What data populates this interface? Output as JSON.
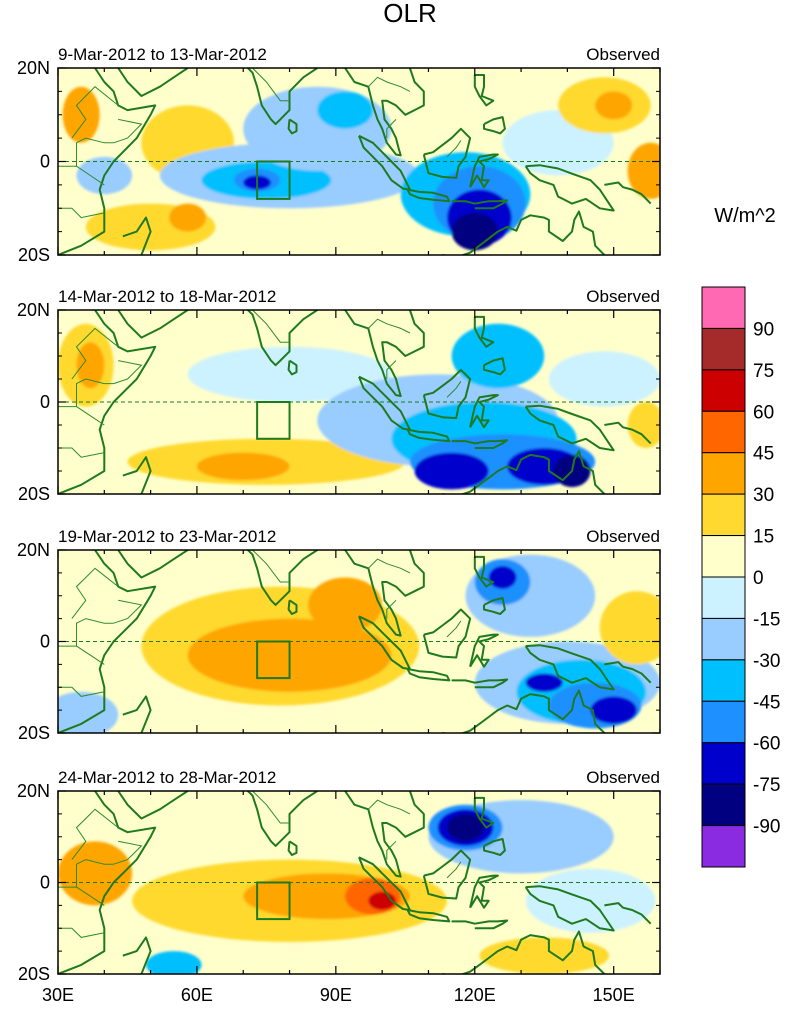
{
  "chart_data": {
    "type": "heatmap",
    "title": "OLR",
    "units": "W/m^2",
    "x_axis": {
      "range": [
        30,
        160
      ],
      "ticks": [
        30,
        60,
        90,
        120,
        150
      ],
      "tick_labels": [
        "30E",
        "60E",
        "90E",
        "120E",
        "150E"
      ]
    },
    "y_axis": {
      "range": [
        -20,
        20
      ],
      "ticks": [
        20,
        0,
        -20
      ],
      "tick_labels": [
        "20N",
        "0",
        "20S"
      ]
    },
    "equator_line": "dashed at 0",
    "box_region": {
      "lon": [
        73,
        80
      ],
      "lat": [
        -8,
        0
      ]
    },
    "colorbar": {
      "levels": [
        "90",
        "75",
        "60",
        "45",
        "30",
        "15",
        "0",
        "-15",
        "-30",
        "-45",
        "-60",
        "-75",
        "-90"
      ],
      "colors": [
        "#ff69b4",
        "#a52a2a",
        "#cc0000",
        "#ff6600",
        "#ffa500",
        "#ffd92f",
        "#ffffcc",
        "#ccf2ff",
        "#99ccff",
        "#00bfff",
        "#1e90ff",
        "#0000cd",
        "#000080",
        "#8a2be2"
      ]
    },
    "panels": [
      {
        "period": "9-Mar-2012 to 13-Mar-2012",
        "label": "Observed",
        "anomalies": [
          {
            "lon": 35,
            "lat": 10,
            "rx": 4,
            "ry": 6,
            "value": 30
          },
          {
            "lon": 40,
            "lat": -3,
            "rx": 6,
            "ry": 4,
            "value": -30
          },
          {
            "lon": 50,
            "lat": -14,
            "rx": 14,
            "ry": 5,
            "value": 15
          },
          {
            "lon": 58,
            "lat": -12,
            "rx": 4,
            "ry": 3,
            "value": 30
          },
          {
            "lon": 58,
            "lat": 4,
            "rx": 10,
            "ry": 8,
            "value": 15
          },
          {
            "lon": 80,
            "lat": -3,
            "rx": 28,
            "ry": 7,
            "value": -30
          },
          {
            "lon": 75,
            "lat": -4,
            "rx": 14,
            "ry": 4,
            "value": -45
          },
          {
            "lon": 73,
            "lat": -4,
            "rx": 5,
            "ry": 2.5,
            "value": -60
          },
          {
            "lon": 73,
            "lat": -4.5,
            "rx": 3,
            "ry": 1.5,
            "value": -75
          },
          {
            "lon": 86,
            "lat": 7,
            "rx": 16,
            "ry": 9,
            "value": -30
          },
          {
            "lon": 92,
            "lat": 11,
            "rx": 6,
            "ry": 4,
            "value": -45
          },
          {
            "lon": 118,
            "lat": -7,
            "rx": 14,
            "ry": 9,
            "value": -45
          },
          {
            "lon": 121,
            "lat": -9,
            "rx": 10,
            "ry": 8,
            "value": -60
          },
          {
            "lon": 121,
            "lat": -12,
            "rx": 7,
            "ry": 6,
            "value": -75
          },
          {
            "lon": 120,
            "lat": -15,
            "rx": 5,
            "ry": 4,
            "value": -90
          },
          {
            "lon": 138,
            "lat": 4,
            "rx": 12,
            "ry": 7,
            "value": -15
          },
          {
            "lon": 148,
            "lat": 12,
            "rx": 10,
            "ry": 6,
            "value": 15
          },
          {
            "lon": 150,
            "lat": 12,
            "rx": 4,
            "ry": 3,
            "value": 30
          },
          {
            "lon": 158,
            "lat": -2,
            "rx": 5,
            "ry": 6,
            "value": 30
          }
        ]
      },
      {
        "period": "14-Mar-2012 to 18-Mar-2012",
        "label": "Observed",
        "anomalies": [
          {
            "lon": 36,
            "lat": 8,
            "rx": 6,
            "ry": 9,
            "value": 15
          },
          {
            "lon": 37,
            "lat": 8,
            "rx": 3,
            "ry": 5,
            "value": 30
          },
          {
            "lon": 75,
            "lat": -13,
            "rx": 30,
            "ry": 5,
            "value": 15
          },
          {
            "lon": 70,
            "lat": -14,
            "rx": 10,
            "ry": 3,
            "value": 30
          },
          {
            "lon": 80,
            "lat": 6,
            "rx": 22,
            "ry": 6,
            "value": -15
          },
          {
            "lon": 112,
            "lat": -4,
            "rx": 26,
            "ry": 10,
            "value": -30
          },
          {
            "lon": 122,
            "lat": -8,
            "rx": 20,
            "ry": 8,
            "value": -45
          },
          {
            "lon": 125,
            "lat": 10,
            "rx": 10,
            "ry": 7,
            "value": -45
          },
          {
            "lon": 126,
            "lat": -13,
            "rx": 20,
            "ry": 6,
            "value": -60
          },
          {
            "lon": 115,
            "lat": -15,
            "rx": 8,
            "ry": 4,
            "value": -75
          },
          {
            "lon": 135,
            "lat": -14,
            "rx": 8,
            "ry": 4,
            "value": -75
          },
          {
            "lon": 141,
            "lat": -15,
            "rx": 4,
            "ry": 3.5,
            "value": -90
          },
          {
            "lon": 148,
            "lat": 5,
            "rx": 12,
            "ry": 6,
            "value": -15
          },
          {
            "lon": 157,
            "lat": -5,
            "rx": 4,
            "ry": 5,
            "value": 15
          }
        ]
      },
      {
        "period": "19-Mar-2012 to 23-Mar-2012",
        "label": "Observed",
        "anomalies": [
          {
            "lon": 78,
            "lat": -1,
            "rx": 30,
            "ry": 13,
            "value": 15
          },
          {
            "lon": 80,
            "lat": -3,
            "rx": 22,
            "ry": 8,
            "value": 30
          },
          {
            "lon": 92,
            "lat": 8,
            "rx": 8,
            "ry": 6,
            "value": 30
          },
          {
            "lon": 132,
            "lat": 10,
            "rx": 14,
            "ry": 9,
            "value": -30
          },
          {
            "lon": 126,
            "lat": 13,
            "rx": 6,
            "ry": 5,
            "value": -60
          },
          {
            "lon": 126,
            "lat": 14,
            "rx": 3,
            "ry": 2.5,
            "value": -75
          },
          {
            "lon": 140,
            "lat": -9,
            "rx": 20,
            "ry": 9,
            "value": -30
          },
          {
            "lon": 143,
            "lat": -11,
            "rx": 14,
            "ry": 7,
            "value": -45
          },
          {
            "lon": 146,
            "lat": -14,
            "rx": 10,
            "ry": 5,
            "value": -60
          },
          {
            "lon": 150,
            "lat": -15,
            "rx": 5,
            "ry": 3,
            "value": -75
          },
          {
            "lon": 135,
            "lat": -9,
            "rx": 4,
            "ry": 2,
            "value": -75
          },
          {
            "lon": 35,
            "lat": -16,
            "rx": 8,
            "ry": 5,
            "value": -30
          },
          {
            "lon": 155,
            "lat": 3,
            "rx": 8,
            "ry": 8,
            "value": 15
          }
        ]
      },
      {
        "period": "24-Mar-2012 to 28-Mar-2012",
        "label": "Observed",
        "anomalies": [
          {
            "lon": 80,
            "lat": -4,
            "rx": 34,
            "ry": 9,
            "value": 15
          },
          {
            "lon": 88,
            "lat": -3,
            "rx": 18,
            "ry": 5,
            "value": 30
          },
          {
            "lon": 98,
            "lat": -3,
            "rx": 6,
            "ry": 4,
            "value": 45
          },
          {
            "lon": 100,
            "lat": -4,
            "rx": 3,
            "ry": 2,
            "value": 60
          },
          {
            "lon": 38,
            "lat": 2,
            "rx": 8,
            "ry": 7,
            "value": 30
          },
          {
            "lon": 130,
            "lat": 10,
            "rx": 20,
            "ry": 8,
            "value": -30
          },
          {
            "lon": 118,
            "lat": 12,
            "rx": 8,
            "ry": 5,
            "value": -60
          },
          {
            "lon": 118,
            "lat": 12,
            "rx": 6,
            "ry": 4,
            "value": -75
          },
          {
            "lon": 118,
            "lat": 12,
            "rx": 4,
            "ry": 3,
            "value": -90
          },
          {
            "lon": 145,
            "lat": -4,
            "rx": 14,
            "ry": 7,
            "value": -15
          },
          {
            "lon": 55,
            "lat": -18,
            "rx": 6,
            "ry": 3,
            "value": -45
          },
          {
            "lon": 135,
            "lat": -16,
            "rx": 14,
            "ry": 4,
            "value": 15
          }
        ]
      }
    ]
  }
}
